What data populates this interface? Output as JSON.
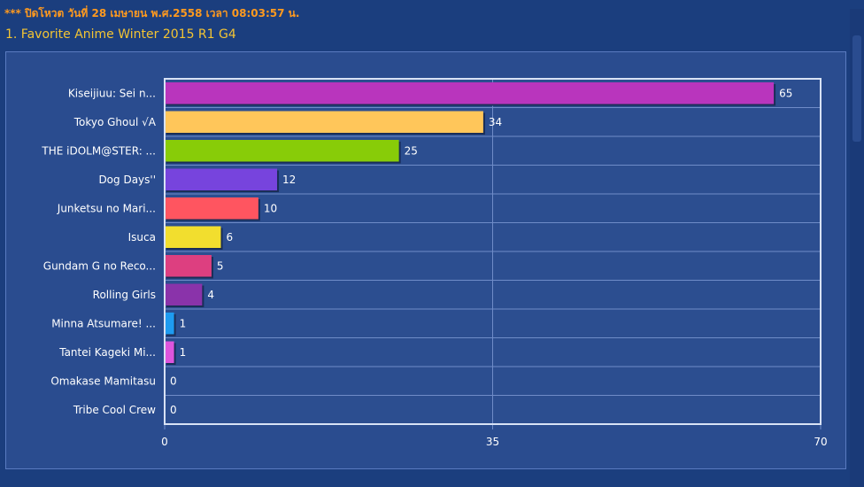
{
  "header": {
    "notice": "*** ปิดโหวต วันที่ 28 เมษายน พ.ศ.2558 เวลา 08:03:57 น.",
    "poll_title": "1. Favorite Anime Winter 2015 R1 G4"
  },
  "chart_data": {
    "type": "bar",
    "orientation": "horizontal",
    "title": "",
    "xlabel": "",
    "ylabel": "",
    "categories": [
      "Kiseijiuu: Sei n...",
      "Tokyo Ghoul √A",
      "THE iDOLM@STER: ...",
      "Dog Days''",
      "Junketsu no Mari...",
      "Isuca",
      "Gundam G no Reco...",
      "Rolling Girls",
      "Minna Atsumare! ...",
      "Tantei Kageki Mi...",
      "Omakase Mamitasu",
      "Tribe Cool Crew"
    ],
    "values": [
      65,
      34,
      25,
      12,
      10,
      6,
      5,
      4,
      1,
      1,
      0,
      0
    ],
    "colors": [
      "#b935bd",
      "#ffc65a",
      "#88cc08",
      "#7744dd",
      "#ff5560",
      "#f2de2e",
      "#dd3f80",
      "#8a33aa",
      "#1e9bf0",
      "#dd55dd",
      "#888888",
      "#888888"
    ],
    "xlim": [
      0,
      70
    ],
    "xticks": [
      "0",
      "35",
      "70"
    ],
    "grid": true,
    "legend": "none"
  }
}
